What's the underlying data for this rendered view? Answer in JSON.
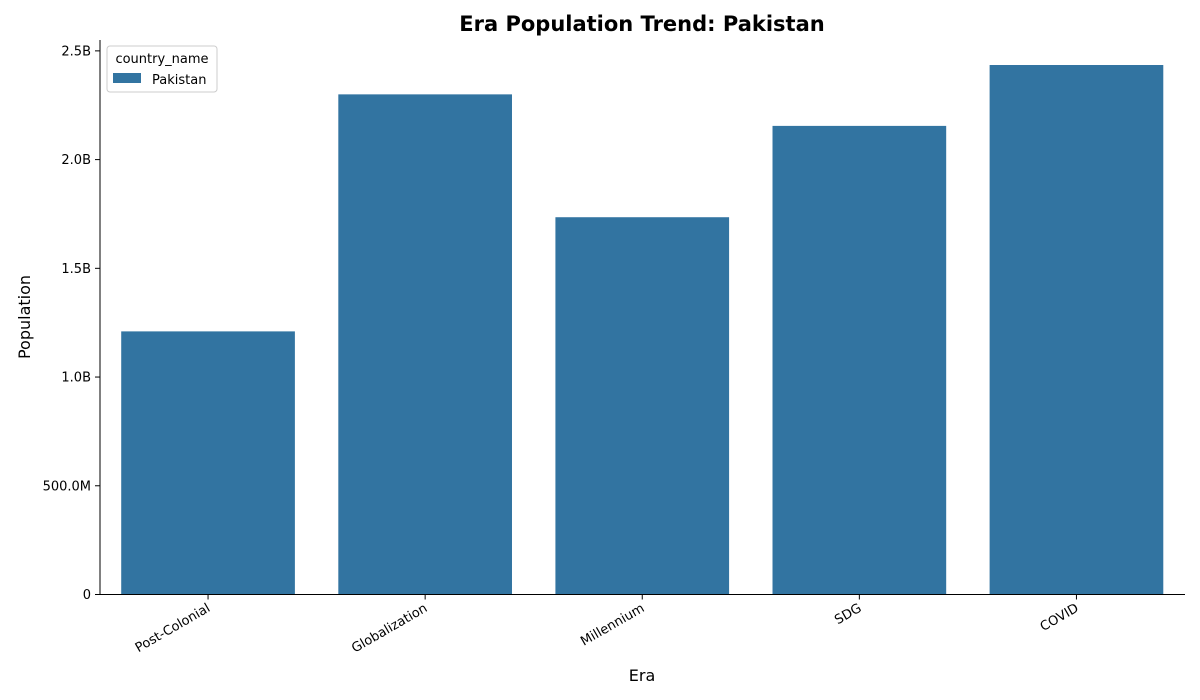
{
  "chart_data": {
    "type": "bar",
    "title": "Era Population Trend: Pakistan",
    "xlabel": "Era",
    "ylabel": "Population",
    "categories": [
      "Post-Colonial",
      "Globalization",
      "Millennium",
      "SDG",
      "COVID"
    ],
    "series": [
      {
        "name": "Pakistan",
        "values": [
          1210000000,
          2300000000,
          1735000000,
          2155000000,
          2435000000
        ]
      }
    ],
    "yticks": [
      0,
      500000000,
      1000000000,
      1500000000,
      2000000000,
      2500000000
    ],
    "ytick_labels": [
      "0",
      "500.0M",
      "1.0B",
      "1.5B",
      "2.0B",
      "2.5B"
    ],
    "ylim": [
      0,
      2550000000
    ],
    "grid": false,
    "legend": {
      "title": "country_name",
      "placement": "top-left"
    },
    "colors": {
      "bar": "#3274a1"
    }
  }
}
